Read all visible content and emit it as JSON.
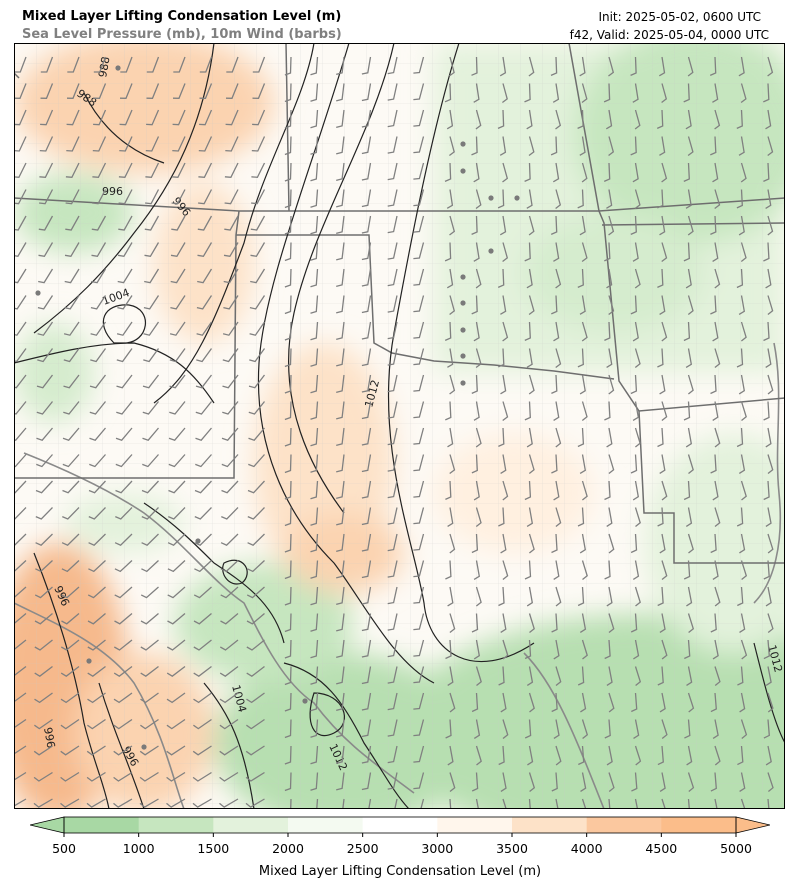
{
  "header": {
    "title": "Mixed Layer Lifting Condensation Level (m)",
    "subtitle": "Sea Level Pressure (mb), 10m Wind (barbs)",
    "init": "Init: 2025-05-02, 0600 UTC",
    "valid": "f42, Valid: 2025-05-04, 0000 UTC"
  },
  "colorbar": {
    "label": "Mixed Layer Lifting Condensation Level (m)",
    "ticks": [
      "500",
      "1000",
      "1500",
      "2000",
      "2500",
      "3000",
      "3500",
      "4000",
      "4500",
      "5000"
    ],
    "colors": [
      "#a8d8a4",
      "#c6e6bf",
      "#e3f2dc",
      "#f4faf1",
      "#ffffff",
      "#fff6ec",
      "#fde2c8",
      "#fbc89f"
    ],
    "under_color": "#a8d8a4",
    "over_color": "#fbbd8a"
  },
  "isobar_labels": [
    "988",
    "988",
    "996",
    "996",
    "1004",
    "1012",
    "996",
    "996",
    "996",
    "1004",
    "1012",
    "1012"
  ],
  "colors": {
    "isobar": "#222222",
    "state_border": "#6e6e6e",
    "county_border": "#c8c8c8",
    "barb": "#808080",
    "river": "#8a8a8a"
  }
}
